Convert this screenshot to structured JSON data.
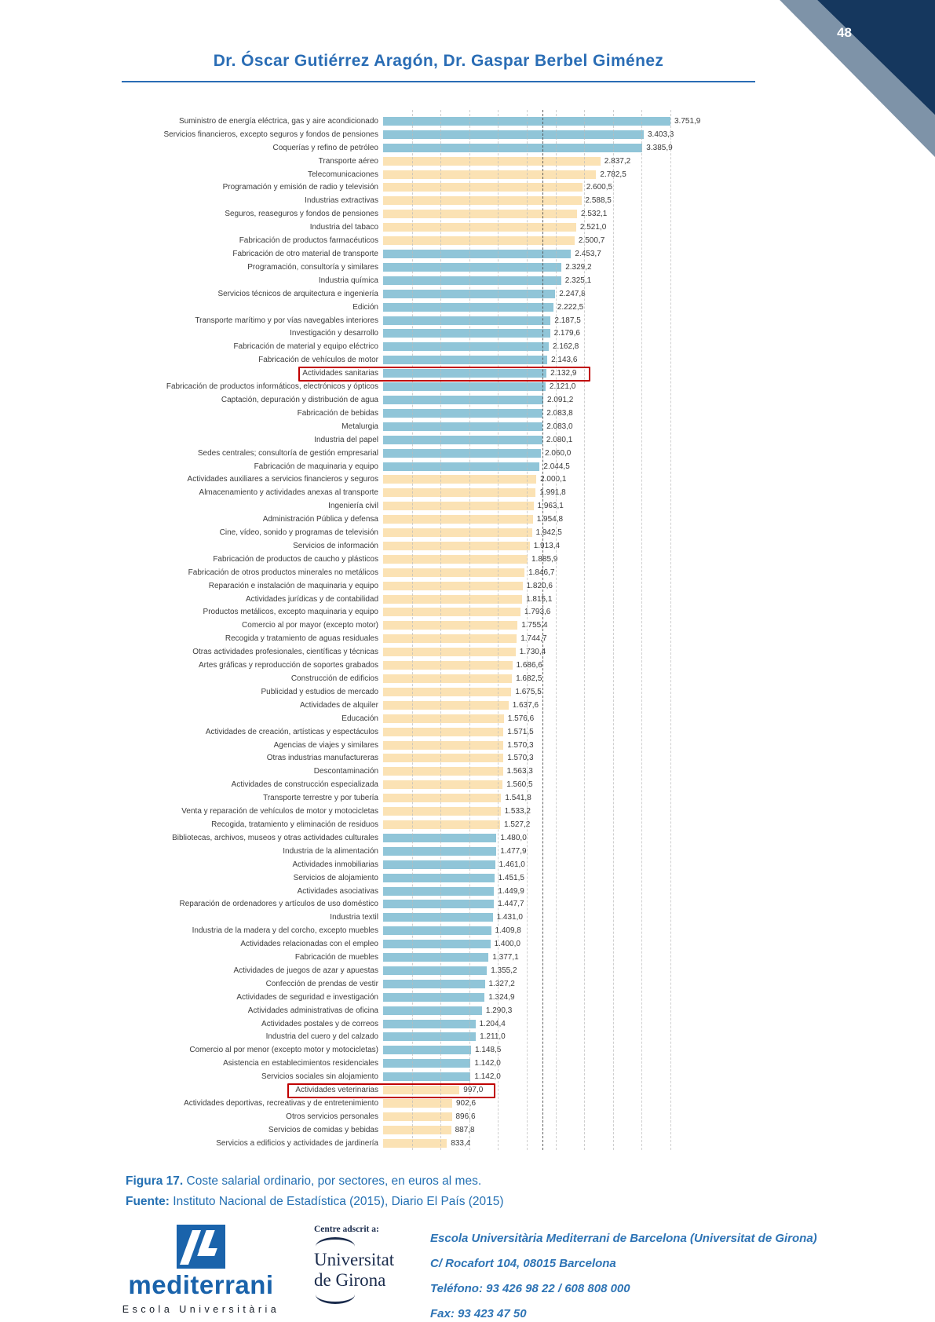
{
  "page": {
    "number": "48"
  },
  "header": {
    "title": "Dr. Óscar Gutiérrez Aragón, Dr. Gaspar Berbel Giménez"
  },
  "chart_data": {
    "type": "bar",
    "orientation": "horizontal",
    "title": "Coste salarial ordinario, por sectores, en euros al mes",
    "xlabel": "euros al mes",
    "ylabel": "",
    "xlim": [
      0,
      4000
    ],
    "grid": true,
    "colors": {
      "blue_bar": "#90C5D8",
      "orange_bar": "#FBE2B4",
      "highlight_border": "#C00000"
    },
    "bars": [
      {
        "label": "Suministro de energía eléctrica, gas y aire acondicionado",
        "value": 3751.9,
        "display": "3.751,9",
        "color": "blue"
      },
      {
        "label": "Servicios financieros, excepto seguros y fondos de pensiones",
        "value": 3403.3,
        "display": "3.403,3",
        "color": "blue"
      },
      {
        "label": "Coquerías y refino de petróleo",
        "value": 3385.9,
        "display": "3.385,9",
        "color": "blue"
      },
      {
        "label": "Transporte aéreo",
        "value": 2837.2,
        "display": "2.837,2",
        "color": "orange"
      },
      {
        "label": "Telecomunicaciones",
        "value": 2782.5,
        "display": "2.782,5",
        "color": "orange"
      },
      {
        "label": "Programación y emisión de radio y televisión",
        "value": 2600.5,
        "display": "2.600,5",
        "color": "orange"
      },
      {
        "label": "Industrias extractivas",
        "value": 2588.5,
        "display": "2.588,5",
        "color": "orange"
      },
      {
        "label": "Seguros, reaseguros y fondos de pensiones",
        "value": 2532.1,
        "display": "2.532,1",
        "color": "orange"
      },
      {
        "label": "Industria del tabaco",
        "value": 2521.0,
        "display": "2.521,0",
        "color": "orange"
      },
      {
        "label": "Fabricación de productos farmacéuticos",
        "value": 2500.7,
        "display": "2.500,7",
        "color": "orange"
      },
      {
        "label": "Fabricación de otro material de transporte",
        "value": 2453.7,
        "display": "2.453,7",
        "color": "blue"
      },
      {
        "label": "Programación, consultoría y similares",
        "value": 2329.2,
        "display": "2.329,2",
        "color": "blue"
      },
      {
        "label": "Industria química",
        "value": 2325.1,
        "display": "2.325,1",
        "color": "blue"
      },
      {
        "label": "Servicios técnicos de arquitectura e ingeniería",
        "value": 2247.8,
        "display": "2.247,8",
        "color": "blue"
      },
      {
        "label": "Edición",
        "value": 2222.5,
        "display": "2.222,5",
        "color": "blue"
      },
      {
        "label": "Transporte marítimo y por vías navegables interiores",
        "value": 2187.5,
        "display": "2.187,5",
        "color": "blue"
      },
      {
        "label": "Investigación y desarrollo",
        "value": 2179.6,
        "display": "2.179,6",
        "color": "blue"
      },
      {
        "label": "Fabricación de material y equipo eléctrico",
        "value": 2162.8,
        "display": "2.162,8",
        "color": "blue"
      },
      {
        "label": "Fabricación de vehículos de motor",
        "value": 2143.6,
        "display": "2.143,6",
        "color": "blue"
      },
      {
        "label": "Actividades sanitarias",
        "value": 2132.9,
        "display": "2.132,9",
        "color": "blue",
        "highlight": true
      },
      {
        "label": "Fabricación de productos informáticos, electrónicos y ópticos",
        "value": 2121.0,
        "display": "2.121,0",
        "color": "blue"
      },
      {
        "label": "Captación, depuración y distribución de agua",
        "value": 2091.2,
        "display": "2.091,2",
        "color": "blue"
      },
      {
        "label": "Fabricación de bebidas",
        "value": 2083.8,
        "display": "2.083,8",
        "color": "blue"
      },
      {
        "label": "Metalurgia",
        "value": 2083.0,
        "display": "2.083,0",
        "color": "blue"
      },
      {
        "label": "Industria del papel",
        "value": 2080.1,
        "display": "2.080,1",
        "color": "blue"
      },
      {
        "label": "Sedes centrales; consultoría de gestión empresarial",
        "value": 2060.0,
        "display": "2.060,0",
        "color": "blue"
      },
      {
        "label": "Fabricación de maquinaria y equipo",
        "value": 2044.5,
        "display": "2.044,5",
        "color": "blue"
      },
      {
        "label": "Actividades auxiliares a servicios financieros y seguros",
        "value": 2000.1,
        "display": "2.000,1",
        "color": "orange"
      },
      {
        "label": "Almacenamiento y actividades anexas al transporte",
        "value": 1991.8,
        "display": "1.991,8",
        "color": "orange"
      },
      {
        "label": "Ingeniería civil",
        "value": 1963.1,
        "display": "1.963,1",
        "color": "orange"
      },
      {
        "label": "Administración Pública y defensa",
        "value": 1954.8,
        "display": "1.954,8",
        "color": "orange"
      },
      {
        "label": "Cine, vídeo, sonido y programas de televisión",
        "value": 1942.5,
        "display": "1.942,5",
        "color": "orange"
      },
      {
        "label": "Servicios de información",
        "value": 1913.4,
        "display": "1.913,4",
        "color": "orange"
      },
      {
        "label": "Fabricación de productos de caucho y plásticos",
        "value": 1885.9,
        "display": "1.885,9",
        "color": "orange"
      },
      {
        "label": "Fabricación de otros productos minerales no metálicos",
        "value": 1846.7,
        "display": "1.846,7",
        "color": "orange"
      },
      {
        "label": "Reparación e instalación de maquinaria y equipo",
        "value": 1820.6,
        "display": "1.820,6",
        "color": "orange"
      },
      {
        "label": "Actividades jurídicas y de contabilidad",
        "value": 1815.1,
        "display": "1.815,1",
        "color": "orange"
      },
      {
        "label": "Productos metálicos, excepto maquinaria y equipo",
        "value": 1793.6,
        "display": "1.793,6",
        "color": "orange"
      },
      {
        "label": "Comercio al por mayor (excepto motor)",
        "value": 1755.4,
        "display": "1.755,4",
        "color": "orange"
      },
      {
        "label": "Recogida y tratamiento de aguas residuales",
        "value": 1744.7,
        "display": "1.744,7",
        "color": "orange"
      },
      {
        "label": "Otras actividades profesionales, científicas y técnicas",
        "value": 1730.4,
        "display": "1.730,4",
        "color": "orange"
      },
      {
        "label": "Artes gráficas y reproducción de soportes grabados",
        "value": 1686.6,
        "display": "1.686,6",
        "color": "orange"
      },
      {
        "label": "Construcción de edificios",
        "value": 1682.5,
        "display": "1.682,5",
        "color": "orange"
      },
      {
        "label": "Publicidad y estudios de mercado",
        "value": 1675.5,
        "display": "1.675,5",
        "color": "orange"
      },
      {
        "label": "Actividades de alquiler",
        "value": 1637.6,
        "display": "1.637,6",
        "color": "orange"
      },
      {
        "label": "Educación",
        "value": 1576.6,
        "display": "1.576,6",
        "color": "orange"
      },
      {
        "label": "Actividades de creación, artísticas y espectáculos",
        "value": 1571.5,
        "display": "1.571,5",
        "color": "orange"
      },
      {
        "label": "Agencias de viajes y similares",
        "value": 1570.3,
        "display": "1.570,3",
        "color": "orange"
      },
      {
        "label": "Otras industrias manufactureras",
        "value": 1570.3,
        "display": "1.570,3",
        "color": "orange"
      },
      {
        "label": "Descontaminación",
        "value": 1563.3,
        "display": "1.563,3",
        "color": "orange"
      },
      {
        "label": "Actividades de construcción especializada",
        "value": 1560.5,
        "display": "1.560,5",
        "color": "orange"
      },
      {
        "label": "Transporte terrestre y por tubería",
        "value": 1541.8,
        "display": "1.541,8",
        "color": "orange"
      },
      {
        "label": "Venta y reparación de vehículos de motor y motocicletas",
        "value": 1533.2,
        "display": "1.533,2",
        "color": "orange"
      },
      {
        "label": "Recogida, tratamiento y eliminación de residuos",
        "value": 1527.2,
        "display": "1.527,2",
        "color": "orange"
      },
      {
        "label": "Bibliotecas, archivos, museos y otras actividades culturales",
        "value": 1480.0,
        "display": "1.480,0",
        "color": "blue"
      },
      {
        "label": "Industria de la alimentación",
        "value": 1477.9,
        "display": "1.477,9",
        "color": "blue"
      },
      {
        "label": "Actividades inmobiliarias",
        "value": 1461.0,
        "display": "1.461,0",
        "color": "blue"
      },
      {
        "label": "Servicios de alojamiento",
        "value": 1451.5,
        "display": "1.451,5",
        "color": "blue"
      },
      {
        "label": "Actividades asociativas",
        "value": 1449.9,
        "display": "1.449,9",
        "color": "blue"
      },
      {
        "label": "Reparación de ordenadores y artículos de uso doméstico",
        "value": 1447.7,
        "display": "1.447,7",
        "color": "blue"
      },
      {
        "label": "Industria textil",
        "value": 1431.0,
        "display": "1.431,0",
        "color": "blue"
      },
      {
        "label": "Industria de la madera y del corcho, excepto muebles",
        "value": 1409.8,
        "display": "1.409,8",
        "color": "blue"
      },
      {
        "label": "Actividades relacionadas con el empleo",
        "value": 1400.0,
        "display": "1.400,0",
        "color": "blue"
      },
      {
        "label": "Fabricación de muebles",
        "value": 1377.1,
        "display": "1.377,1",
        "color": "blue"
      },
      {
        "label": "Actividades de juegos de azar y apuestas",
        "value": 1355.2,
        "display": "1.355,2",
        "color": "blue"
      },
      {
        "label": "Confección de prendas de vestir",
        "value": 1327.2,
        "display": "1.327,2",
        "color": "blue"
      },
      {
        "label": "Actividades de seguridad e investigación",
        "value": 1324.9,
        "display": "1.324,9",
        "color": "blue"
      },
      {
        "label": "Actividades administrativas de oficina",
        "value": 1290.3,
        "display": "1.290,3",
        "color": "blue"
      },
      {
        "label": "Actividades postales y de correos",
        "value": 1204.4,
        "display": "1.204,4",
        "color": "blue"
      },
      {
        "label": "Industria del cuero y del calzado",
        "value": 1211.0,
        "display": "1.211,0",
        "color": "blue"
      },
      {
        "label": "Comercio al por menor (excepto motor y motocicletas)",
        "value": 1148.5,
        "display": "1.148,5",
        "color": "blue"
      },
      {
        "label": "Asistencia en establecimientos residenciales",
        "value": 1142.0,
        "display": "1.142,0",
        "color": "blue"
      },
      {
        "label": "Servicios sociales sin alojamiento",
        "value": 1142.0,
        "display": "1.142,0",
        "color": "blue"
      },
      {
        "label": "Actividades veterinarias",
        "value": 997.0,
        "display": "997,0",
        "color": "orange",
        "highlight": true
      },
      {
        "label": "Actividades deportivas, recreativas y de entretenimiento",
        "value": 902.6,
        "display": "902,6",
        "color": "orange"
      },
      {
        "label": "Otros servicios personales",
        "value": 896.6,
        "display": "896,6",
        "color": "orange"
      },
      {
        "label": "Servicios de comidas y bebidas",
        "value": 887.8,
        "display": "887,8",
        "color": "orange"
      },
      {
        "label": "Servicios a edificios y actividades de jardinería",
        "value": 833.4,
        "display": "833,4",
        "color": "orange"
      }
    ]
  },
  "caption": {
    "figura_label": "Figura 17.",
    "figura_text": " Coste salarial ordinario, por sectores, en euros al mes.",
    "fuente_label": "Fuente:",
    "fuente_text": " Instituto Nacional de Estadística (2015), Diario El País (2015)"
  },
  "footer": {
    "mediterrani_name": "mediterrani",
    "mediterrani_sub": "Escola Universitària",
    "adscrit": "Centre adscrit a:",
    "udg_line1": "Universitat",
    "udg_line2": "de Girona",
    "contact": [
      "Escola Universitària Mediterrani de Barcelona (Universitat de Girona)",
      "C/ Rocafort 104, 08015 Barcelona",
      "Teléfono: 93 426 98 22 / 608 808 000",
      "Fax: 93 423 47 50"
    ]
  }
}
